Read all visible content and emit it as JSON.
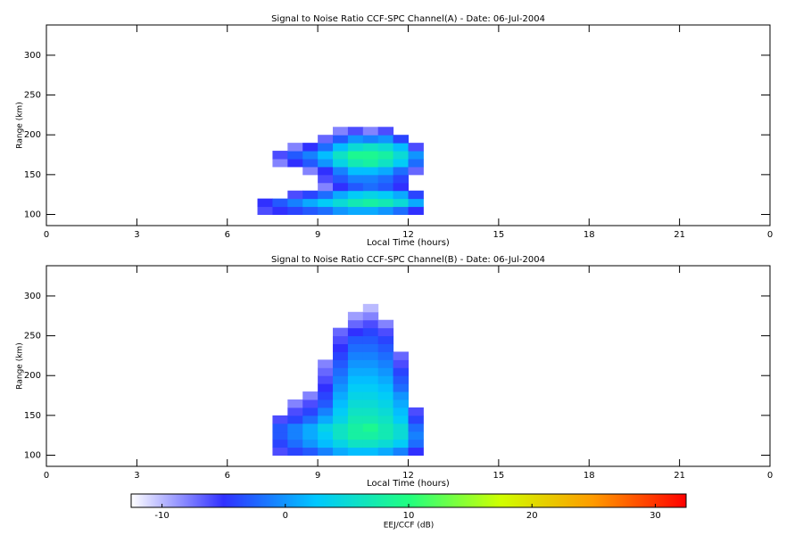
{
  "chart_data": [
    {
      "type": "heatmap",
      "title": "Signal to Noise Ratio CCF-SPC Channel(A) - Date: 06-Jul-2004",
      "x_label": "Local Time (hours)",
      "y_label": "Range (km)",
      "xlim": [
        0,
        24
      ],
      "xticks": [
        0,
        3,
        6,
        9,
        12,
        15,
        18,
        21,
        {
          "value": 24,
          "label": "0"
        }
      ],
      "ylim": [
        86,
        338
      ],
      "yticks": [
        100,
        150,
        200,
        250,
        300
      ],
      "x_edges": [
        7,
        7.5,
        8,
        8.5,
        9,
        9.5,
        10,
        10.5,
        11,
        11.5,
        12,
        12.5
      ],
      "y_edges": [
        100,
        110,
        120,
        130,
        140,
        150,
        160,
        170,
        180,
        190,
        200,
        210
      ],
      "z": [
        [
          -6,
          -5,
          -4,
          -3,
          -2,
          0,
          1,
          1,
          0,
          -2,
          -5
        ],
        [
          -5,
          -3,
          -1,
          1,
          3,
          5,
          7,
          8,
          7,
          5,
          1
        ],
        [
          null,
          null,
          -6,
          -4,
          -2,
          1,
          3,
          4,
          3,
          1,
          -4
        ],
        [
          null,
          null,
          null,
          null,
          -8,
          -5,
          -3,
          -2,
          -3,
          -5,
          null
        ],
        [
          null,
          null,
          null,
          null,
          -6,
          -3,
          -1,
          -1,
          -2,
          -4,
          null
        ],
        [
          null,
          null,
          null,
          -8,
          -5,
          -1,
          2,
          2,
          1,
          -2,
          -7
        ],
        [
          null,
          -8,
          -5,
          -3,
          0,
          4,
          7,
          8,
          6,
          3,
          -2
        ],
        [
          null,
          -6,
          -3,
          -1,
          2,
          6,
          9,
          9,
          8,
          5,
          0
        ],
        [
          null,
          null,
          -8,
          -5,
          -2,
          2,
          5,
          6,
          5,
          2,
          -6
        ],
        [
          null,
          null,
          null,
          null,
          -7,
          -3,
          0,
          -1,
          0,
          -4,
          null
        ],
        [
          null,
          null,
          null,
          null,
          null,
          -8,
          -6,
          -8,
          -6,
          null,
          null
        ]
      ]
    },
    {
      "type": "heatmap",
      "title": "Signal to Noise Ratio CCF-SPC Channel(B) - Date: 06-Jul-2004",
      "x_label": "Local Time (hours)",
      "y_label": "Range (km)",
      "xlim": [
        0,
        24
      ],
      "xticks": [
        0,
        3,
        6,
        9,
        12,
        15,
        18,
        21,
        {
          "value": 24,
          "label": "0"
        }
      ],
      "ylim": [
        86,
        338
      ],
      "yticks": [
        100,
        150,
        200,
        250,
        300
      ],
      "x_edges": [
        7,
        7.5,
        8,
        8.5,
        9,
        9.5,
        10,
        10.5,
        11,
        11.5,
        12,
        12.5
      ],
      "y_edges": [
        100,
        110,
        120,
        130,
        140,
        150,
        160,
        170,
        180,
        190,
        200,
        210,
        220,
        230,
        240,
        250,
        260,
        270,
        280,
        290
      ],
      "z": [
        [
          null,
          -6,
          -4,
          -3,
          -1,
          1,
          2,
          2,
          1,
          -1,
          -5
        ],
        [
          null,
          -4,
          -2,
          0,
          2,
          4,
          6,
          6,
          5,
          3,
          -2
        ],
        [
          null,
          -3,
          -1,
          1,
          3,
          6,
          8,
          8,
          7,
          5,
          -1
        ],
        [
          null,
          -3,
          -1,
          1,
          4,
          6,
          8,
          9,
          7,
          5,
          -2
        ],
        [
          null,
          -6,
          -4,
          -2,
          1,
          4,
          7,
          7,
          6,
          3,
          -4
        ],
        [
          null,
          null,
          -6,
          -4,
          -1,
          3,
          6,
          6,
          5,
          2,
          -6
        ],
        [
          null,
          null,
          -8,
          -6,
          -3,
          2,
          5,
          5,
          4,
          1,
          null
        ],
        [
          null,
          null,
          null,
          -8,
          -4,
          1,
          4,
          4,
          3,
          0,
          null
        ],
        [
          null,
          null,
          null,
          null,
          -5,
          0,
          3,
          3,
          2,
          -2,
          null
        ],
        [
          null,
          null,
          null,
          null,
          -6,
          -1,
          2,
          2,
          1,
          -3,
          null
        ],
        [
          null,
          null,
          null,
          null,
          -7,
          -2,
          1,
          1,
          0,
          -4,
          null
        ],
        [
          null,
          null,
          null,
          null,
          -8,
          -3,
          0,
          0,
          -1,
          -6,
          null
        ],
        [
          null,
          null,
          null,
          null,
          null,
          -4,
          -1,
          -1,
          -2,
          -7,
          null
        ],
        [
          null,
          null,
          null,
          null,
          null,
          -5,
          -2,
          -2,
          -3,
          null,
          null
        ],
        [
          null,
          null,
          null,
          null,
          null,
          -6,
          -3,
          -3,
          -4,
          null,
          null
        ],
        [
          null,
          null,
          null,
          null,
          null,
          -7,
          -5,
          -4,
          -6,
          null,
          null
        ],
        [
          null,
          null,
          null,
          null,
          null,
          null,
          -7,
          -6,
          -8,
          null,
          null
        ],
        [
          null,
          null,
          null,
          null,
          null,
          null,
          -9,
          -8,
          null,
          null,
          null
        ],
        [
          null,
          null,
          null,
          null,
          null,
          null,
          null,
          -10,
          null,
          null,
          null
        ]
      ]
    }
  ],
  "colorbar": {
    "label": "EEJ/CCF (dB)",
    "clim": [
      -12.5,
      32.5
    ],
    "ticks": [
      -10,
      0,
      10,
      20,
      30
    ],
    "colors": [
      "#ffffff",
      "#3030ff",
      "#00c8ff",
      "#20ff80",
      "#d0ff00",
      "#ff9a00",
      "#ff0000"
    ]
  }
}
